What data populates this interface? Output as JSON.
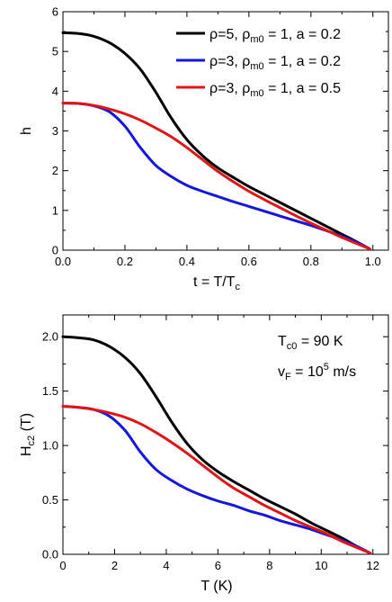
{
  "chart_data": [
    {
      "type": "line",
      "xlabel": {
        "main": "t = T/T",
        "sub": "c"
      },
      "ylabel": {
        "main": "h",
        "sub": ""
      },
      "xlim": [
        0,
        1.05
      ],
      "ylim": [
        0,
        6
      ],
      "x_ticks": [
        0.0,
        0.2,
        0.4,
        0.6,
        0.8,
        1.0
      ],
      "x_tick_labels": [
        "0.0",
        "0.2",
        "0.4",
        "0.6",
        "0.8",
        "1.0"
      ],
      "y_ticks": [
        0,
        1,
        2,
        3,
        4,
        5,
        6
      ],
      "y_tick_labels": [
        "0",
        "1",
        "2",
        "3",
        "4",
        "5",
        "6"
      ],
      "legend_position": "top-right",
      "series": [
        {
          "legend": {
            "a": "ρ=5, ρ",
            "b": "m0",
            "c": " = 1, a = 0.2"
          },
          "color": "#000000",
          "x": [
            0,
            0.05,
            0.1,
            0.15,
            0.2,
            0.25,
            0.3,
            0.35,
            0.4,
            0.45,
            0.5,
            0.55,
            0.6,
            0.65,
            0.7,
            0.75,
            0.8,
            0.85,
            0.9,
            0.95,
            0.99
          ],
          "y": [
            5.47,
            5.45,
            5.38,
            5.22,
            4.95,
            4.55,
            3.97,
            3.32,
            2.78,
            2.38,
            2.07,
            1.83,
            1.6,
            1.4,
            1.2,
            1.0,
            0.8,
            0.6,
            0.4,
            0.2,
            0.03
          ]
        },
        {
          "legend": {
            "a": "ρ=3, ρ",
            "b": "m0",
            "c": " = 1, a = 0.2"
          },
          "color": "#1515e0",
          "x": [
            0,
            0.05,
            0.1,
            0.15,
            0.2,
            0.25,
            0.3,
            0.35,
            0.4,
            0.45,
            0.5,
            0.55,
            0.6,
            0.65,
            0.7,
            0.75,
            0.8,
            0.85,
            0.9,
            0.95,
            0.99
          ],
          "y": [
            3.7,
            3.69,
            3.63,
            3.48,
            3.12,
            2.58,
            2.13,
            1.85,
            1.63,
            1.48,
            1.35,
            1.22,
            1.1,
            0.98,
            0.86,
            0.74,
            0.62,
            0.49,
            0.35,
            0.19,
            0.03
          ]
        },
        {
          "legend": {
            "a": "ρ=3, ρ",
            "b": "m0",
            "c": " = 1, a = 0.5"
          },
          "color": "#e01515",
          "x": [
            0,
            0.05,
            0.1,
            0.15,
            0.2,
            0.25,
            0.3,
            0.35,
            0.4,
            0.45,
            0.5,
            0.55,
            0.6,
            0.65,
            0.7,
            0.75,
            0.8,
            0.85,
            0.9,
            0.95,
            0.99
          ],
          "y": [
            3.7,
            3.69,
            3.64,
            3.55,
            3.43,
            3.27,
            3.07,
            2.85,
            2.58,
            2.28,
            1.98,
            1.72,
            1.48,
            1.27,
            1.07,
            0.87,
            0.68,
            0.5,
            0.32,
            0.16,
            0.03
          ]
        }
      ]
    },
    {
      "type": "line",
      "xlabel": {
        "main": "T (K)",
        "sub": ""
      },
      "ylabel": {
        "main": "H",
        "sub": "c2",
        "tail": " (T)"
      },
      "xlim": [
        0,
        12.6
      ],
      "ylim": [
        0,
        2.2
      ],
      "x_ticks": [
        0,
        2,
        4,
        6,
        8,
        10,
        12
      ],
      "x_tick_labels": [
        "0",
        "2",
        "4",
        "6",
        "8",
        "10",
        "12"
      ],
      "y_ticks": [
        0,
        0.5,
        1.0,
        1.5,
        2.0
      ],
      "y_tick_labels": [
        "0.0",
        "0.5",
        "1.0",
        "1.5",
        "2.0"
      ],
      "annotations": [
        {
          "a": "T",
          "b": "c0",
          "c": " = 90 K",
          "type": "sub"
        },
        {
          "a": "v",
          "b": "F",
          "c": " = 10",
          "d": "5",
          "e": " m/s",
          "type": "subsup"
        }
      ],
      "series": [
        {
          "color": "#000000",
          "x": [
            0,
            0.6,
            1.2,
            1.8,
            2.4,
            3.0,
            3.6,
            4.2,
            4.8,
            5.4,
            6.0,
            6.6,
            7.2,
            7.8,
            8.4,
            9.0,
            9.6,
            10.2,
            10.8,
            11.4,
            11.9
          ],
          "y": [
            2.0,
            1.99,
            1.97,
            1.91,
            1.81,
            1.66,
            1.45,
            1.22,
            1.02,
            0.87,
            0.76,
            0.67,
            0.59,
            0.51,
            0.44,
            0.37,
            0.29,
            0.22,
            0.15,
            0.07,
            0.01
          ]
        },
        {
          "color": "#1515e0",
          "x": [
            0,
            0.6,
            1.2,
            1.8,
            2.4,
            3.0,
            3.6,
            4.2,
            4.8,
            5.4,
            6.0,
            6.6,
            7.2,
            7.8,
            8.4,
            9.0,
            9.6,
            10.2,
            10.8,
            11.4,
            11.9
          ],
          "y": [
            1.36,
            1.35,
            1.33,
            1.27,
            1.14,
            0.94,
            0.78,
            0.68,
            0.6,
            0.54,
            0.49,
            0.45,
            0.4,
            0.36,
            0.31,
            0.27,
            0.23,
            0.18,
            0.13,
            0.07,
            0.01
          ]
        },
        {
          "color": "#e01515",
          "x": [
            0,
            0.6,
            1.2,
            1.8,
            2.4,
            3.0,
            3.6,
            4.2,
            4.8,
            5.4,
            6.0,
            6.6,
            7.2,
            7.8,
            8.4,
            9.0,
            9.6,
            10.2,
            10.8,
            11.4,
            11.9
          ],
          "y": [
            1.36,
            1.35,
            1.33,
            1.3,
            1.26,
            1.2,
            1.12,
            1.03,
            0.93,
            0.82,
            0.71,
            0.61,
            0.53,
            0.45,
            0.38,
            0.31,
            0.25,
            0.19,
            0.12,
            0.06,
            0.01
          ]
        }
      ]
    }
  ]
}
